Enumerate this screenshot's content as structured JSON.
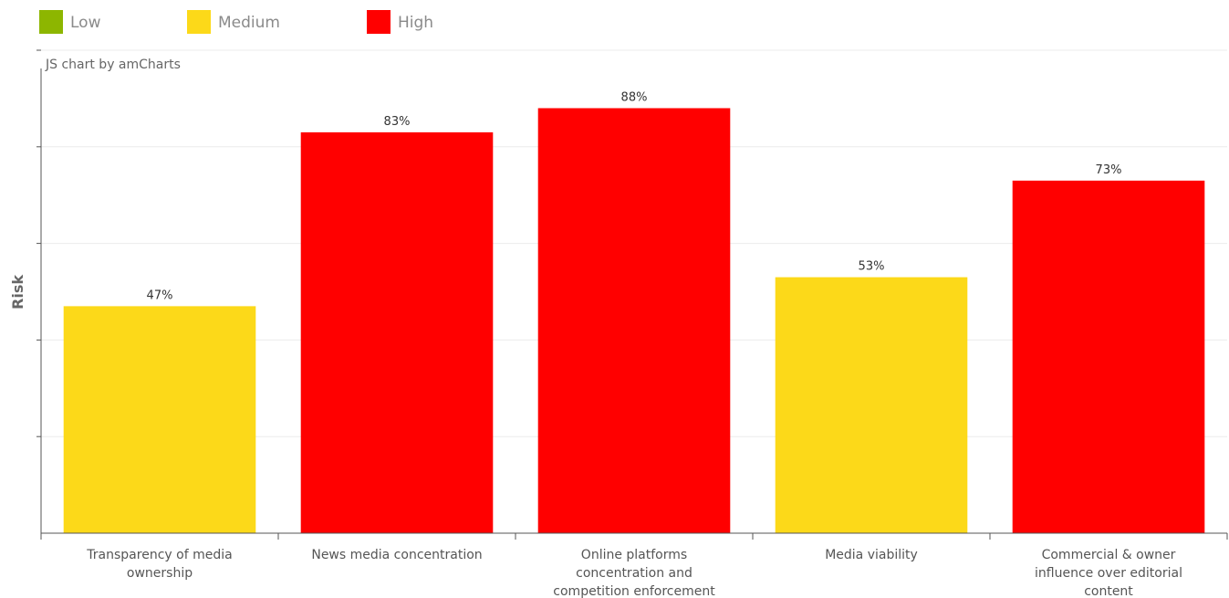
{
  "chart_data": {
    "type": "bar",
    "categories": [
      [
        "Transparency of media",
        "ownership"
      ],
      [
        "News media concentration"
      ],
      [
        "Online platforms",
        "concentration and",
        "competition enforcement"
      ],
      [
        "Media viability"
      ],
      [
        "Commercial & owner",
        "influence over editorial",
        "content"
      ]
    ],
    "values": [
      47,
      83,
      88,
      53,
      73
    ],
    "value_labels": [
      "47%",
      "83%",
      "88%",
      "53%",
      "73%"
    ],
    "risk_levels": [
      "Medium",
      "High",
      "High",
      "Medium",
      "High"
    ],
    "ylabel": "Risk",
    "ylim": [
      0,
      100
    ],
    "gridlines": 5,
    "grid": true,
    "legend_position": "top-left",
    "legend": [
      {
        "name": "Low",
        "color": "#8db600"
      },
      {
        "name": "Medium",
        "color": "#fcd919"
      },
      {
        "name": "High",
        "color": "#ff0000"
      }
    ],
    "credit": "JS chart by amCharts"
  }
}
